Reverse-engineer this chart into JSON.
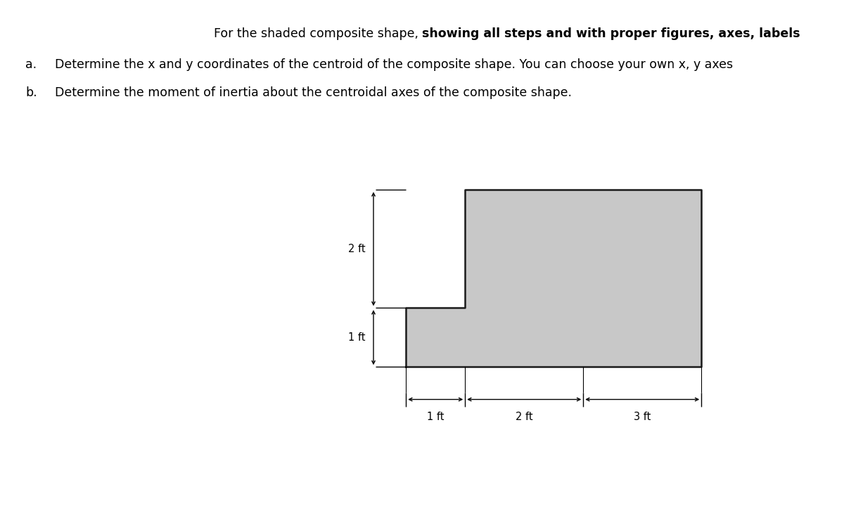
{
  "title_normal": "For the shaded composite shape, ",
  "title_bold": "showing all steps and with proper figures, axes, labels",
  "item_a": "Determine the x and y coordinates of the centroid of the composite shape. You can choose your own x, y axes",
  "item_b": "Determine the moment of inertia about the centroidal axes of the composite shape.",
  "shape_fill": "#c8c8c8",
  "shape_edge": "#1a1a1a",
  "dim_2ft_vertical": "2 ft",
  "dim_1ft_vertical": "1 ft",
  "dim_1ft_horizontal": "1 ft",
  "dim_2ft_horizontal": "2 ft",
  "dim_3ft_horizontal": "3 ft",
  "fig_width": 12.0,
  "fig_height": 7.36,
  "dpi": 100,
  "text_color": "#000000",
  "fontsize_main": 12.5,
  "fontsize_dim": 10.5
}
